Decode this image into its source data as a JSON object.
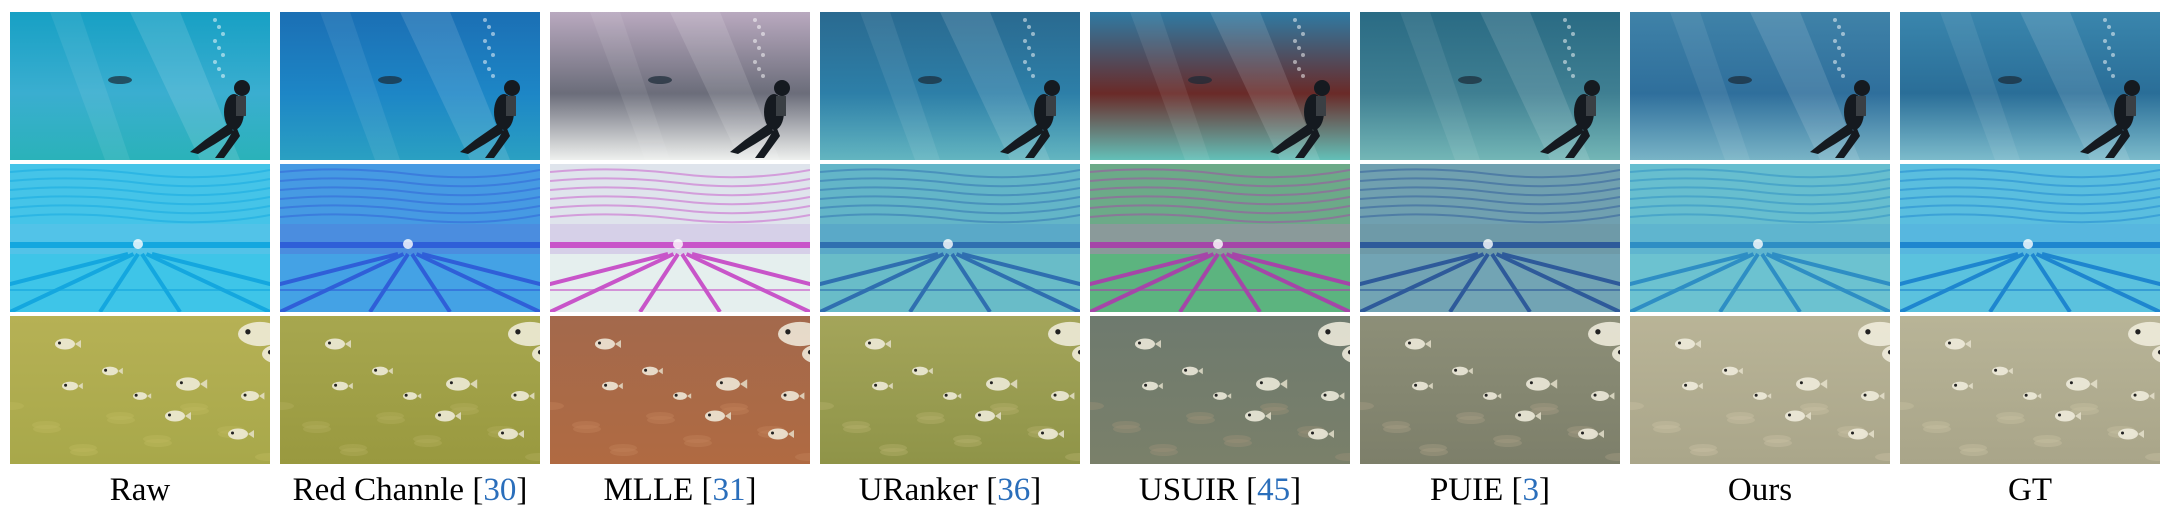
{
  "columns": [
    {
      "name": "Raw",
      "ref": ""
    },
    {
      "name": "Red Channle",
      "ref": "30"
    },
    {
      "name": "MLLE",
      "ref": "31"
    },
    {
      "name": "URanker",
      "ref": "36"
    },
    {
      "name": "USUIR",
      "ref": "45"
    },
    {
      "name": "PUIE",
      "ref": "3"
    },
    {
      "name": "Ours",
      "ref": ""
    },
    {
      "name": "GT",
      "ref": ""
    }
  ],
  "rows": [
    "diver",
    "pool",
    "fish"
  ],
  "palettes": {
    "diver": [
      [
        "#3aaed0",
        "#17a0c4",
        "#2ab2b9"
      ],
      [
        "#1d86c6",
        "#1b6fb4",
        "#2aa0c2"
      ],
      [
        "#6b6d7a",
        "#b9a9bf",
        "#eef0ee"
      ],
      [
        "#2d7fa8",
        "#2a6a90",
        "#63b5c0"
      ],
      [
        "#6a2a28",
        "#2f7aa3",
        "#63c0b8"
      ],
      [
        "#3f7f92",
        "#2a6b84",
        "#73b6b6"
      ],
      [
        "#2f6f9c",
        "#3f82a8",
        "#79b4c6"
      ],
      [
        "#2a6e98",
        "#3a86ad",
        "#7cbbcb"
      ]
    ],
    "pool": [
      [
        "#52c3e8",
        "#14a7df",
        "#3bc5e8"
      ],
      [
        "#4b8ddf",
        "#2f5fd8",
        "#43a6e6"
      ],
      [
        "#d6d0e8",
        "#c855c9",
        "#e8f4ef"
      ],
      [
        "#5aa9c8",
        "#2f6fb0",
        "#6cc0c8"
      ],
      [
        "#8a9a9a",
        "#a546a8",
        "#54b87a"
      ],
      [
        "#6e9aa8",
        "#2e5a9a",
        "#73a6b6"
      ],
      [
        "#5fb5cf",
        "#2e8ec4",
        "#6ec4d0"
      ],
      [
        "#57b7df",
        "#1e86cf",
        "#5cc4de"
      ]
    ],
    "fish": [
      [
        "#b6b155",
        "#a8a84a",
        "#bdb95e"
      ],
      [
        "#a7a74f",
        "#99993f",
        "#b2ae5a"
      ],
      [
        "#a3694c",
        "#b06a42",
        "#c08058"
      ],
      [
        "#a4a55a",
        "#8f9448",
        "#b4b06a"
      ],
      [
        "#6e7a6e",
        "#7a806a",
        "#9a9078"
      ],
      [
        "#8d8f78",
        "#7d7f6a",
        "#a59c82"
      ],
      [
        "#b9b497",
        "#aaa68a",
        "#c7bea2"
      ],
      [
        "#b8b497",
        "#a9a589",
        "#c6bea0"
      ]
    ]
  }
}
